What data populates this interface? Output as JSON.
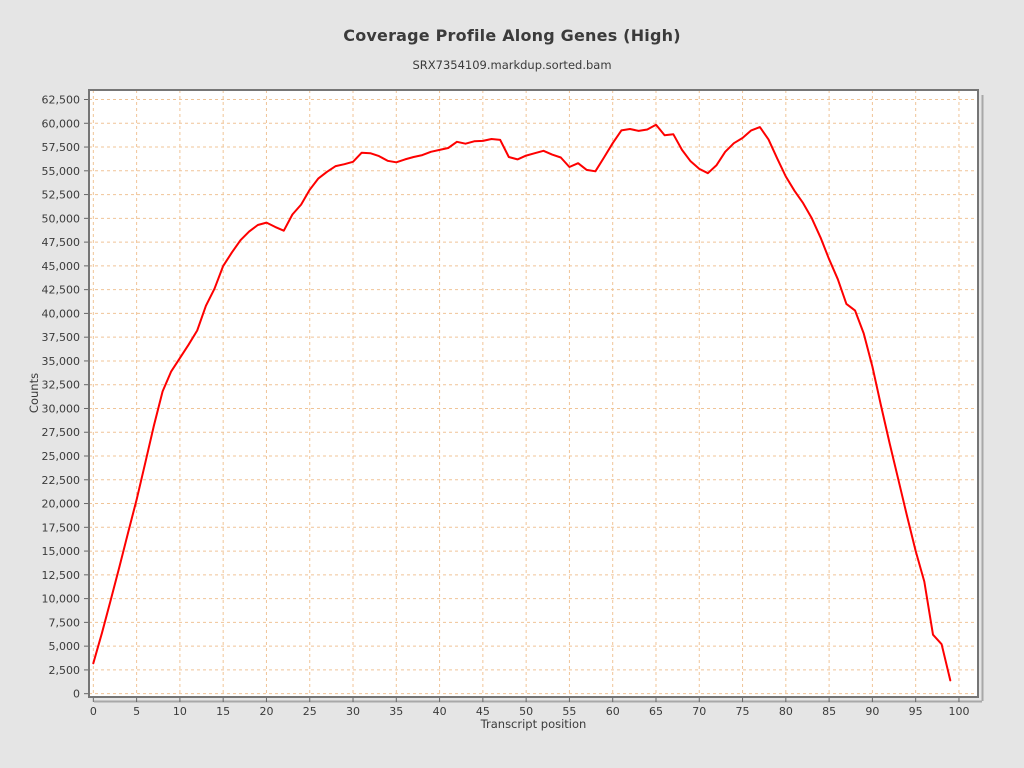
{
  "chart_data": {
    "type": "line",
    "title": "Coverage Profile Along Genes (High)",
    "subtitle": "SRX7354109.markdup.sorted.bam",
    "xlabel": "Transcript position",
    "ylabel": "Counts",
    "legend": "none",
    "grid": true,
    "background_color": "#e5e5e5",
    "plot_background_color": "#ffffff",
    "grid_color": "#f0c497",
    "border_color": "#757575",
    "shadow_color": "#a8a8a8",
    "line_color": "#fe0000",
    "x_ticks": [
      0,
      5,
      10,
      15,
      20,
      25,
      30,
      35,
      40,
      45,
      50,
      55,
      60,
      65,
      70,
      75,
      80,
      85,
      90,
      95,
      100
    ],
    "y_ticks": [
      0,
      2500,
      5000,
      7500,
      10000,
      12500,
      15000,
      17500,
      20000,
      22500,
      25000,
      27500,
      30000,
      32500,
      35000,
      37500,
      40000,
      42500,
      45000,
      47500,
      50000,
      52500,
      55000,
      57500,
      60000,
      62500
    ],
    "xlim": [
      -0.5,
      102.2
    ],
    "ylim": [
      -350,
      63500
    ],
    "series": [
      {
        "name": "Coverage",
        "x_start": 0,
        "x_step": 1,
        "values": [
          3200,
          6400,
          9800,
          13300,
          16900,
          20400,
          24300,
          28200,
          31800,
          33900,
          35300,
          36700,
          38200,
          40800,
          42600,
          45000,
          46400,
          47700,
          48600,
          49300,
          49550,
          49100,
          48700,
          50400,
          51450,
          53000,
          54200,
          54900,
          55500,
          55700,
          55950,
          56900,
          56850,
          56550,
          56050,
          55900,
          56200,
          56450,
          56650,
          57000,
          57200,
          57400,
          58050,
          57850,
          58100,
          58150,
          58350,
          58250,
          56450,
          56200,
          56600,
          56850,
          57100,
          56700,
          56400,
          55400,
          55800,
          55100,
          54950,
          56400,
          57900,
          59250,
          59400,
          59200,
          59350,
          59850,
          58750,
          58850,
          57200,
          56000,
          55200,
          54750,
          55600,
          57000,
          57900,
          58450,
          59250,
          59600,
          58300,
          56300,
          54400,
          52900,
          51600,
          50000,
          48000,
          45700,
          43600,
          41000,
          40300,
          37900,
          34400,
          30300,
          26300,
          22500,
          18700,
          15000,
          11800,
          6200,
          5200,
          1400
        ]
      }
    ]
  }
}
